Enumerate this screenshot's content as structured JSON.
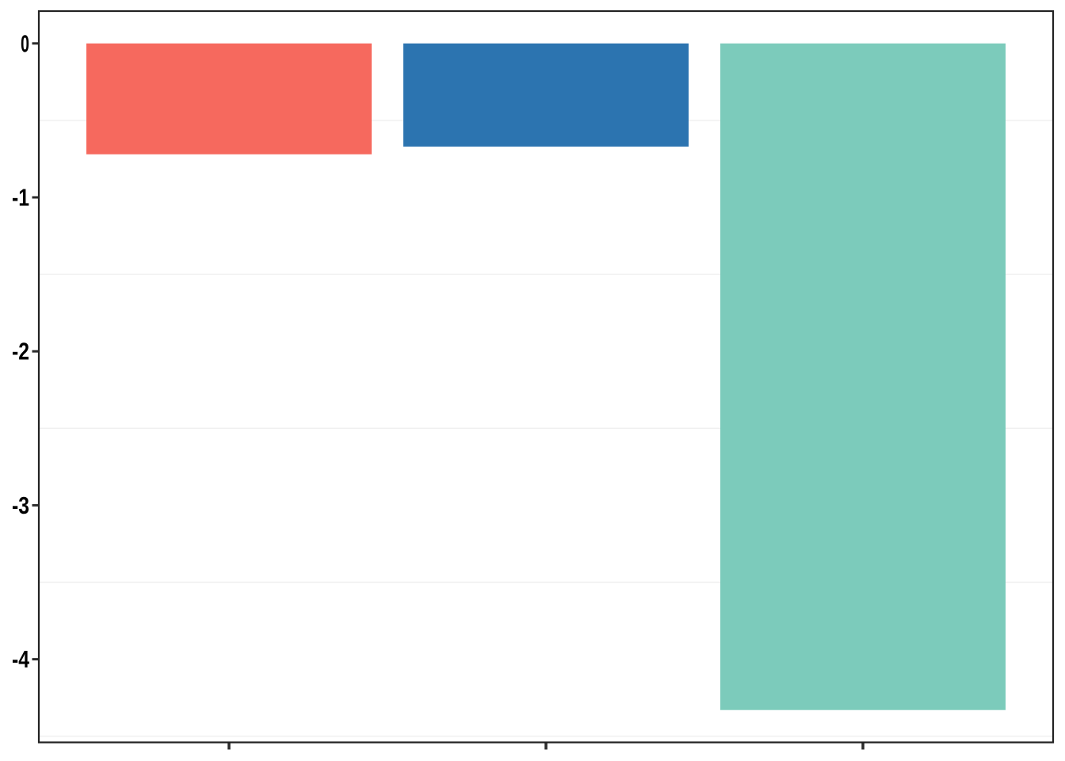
{
  "figure": {
    "background_color": "#ffffff",
    "panel_border_color": "#222222",
    "grid_color": "#f0f0f0",
    "axis_tick_color": "#2b2b2b",
    "tick_label_color": "#000000"
  },
  "chart_data": {
    "type": "bar",
    "title": "",
    "xlabel": "",
    "ylabel": "",
    "categories": [
      "",
      "",
      ""
    ],
    "x_tick_labels_visible": false,
    "values": [
      -0.72,
      -0.67,
      -4.33
    ],
    "bar_colors": [
      "#f6695e",
      "#2c74b0",
      "#7ccbbb"
    ],
    "bar_names": [
      "salmon-bar",
      "blue-bar",
      "teal-bar"
    ],
    "baseline": 0,
    "ylim_top": 0.21,
    "ylim_bottom": -4.54,
    "yticks": [
      0,
      -1,
      -2,
      -3,
      -4
    ],
    "ytick_labels": [
      "0",
      "-1",
      "-2",
      "-3",
      "-4"
    ],
    "minor_gridlines": [
      -0.5,
      -1.5,
      -2.5,
      -3.5,
      -4.5
    ],
    "grid": "minor-horizontal-only",
    "legend": "none",
    "bar_width_fraction": 0.9
  }
}
